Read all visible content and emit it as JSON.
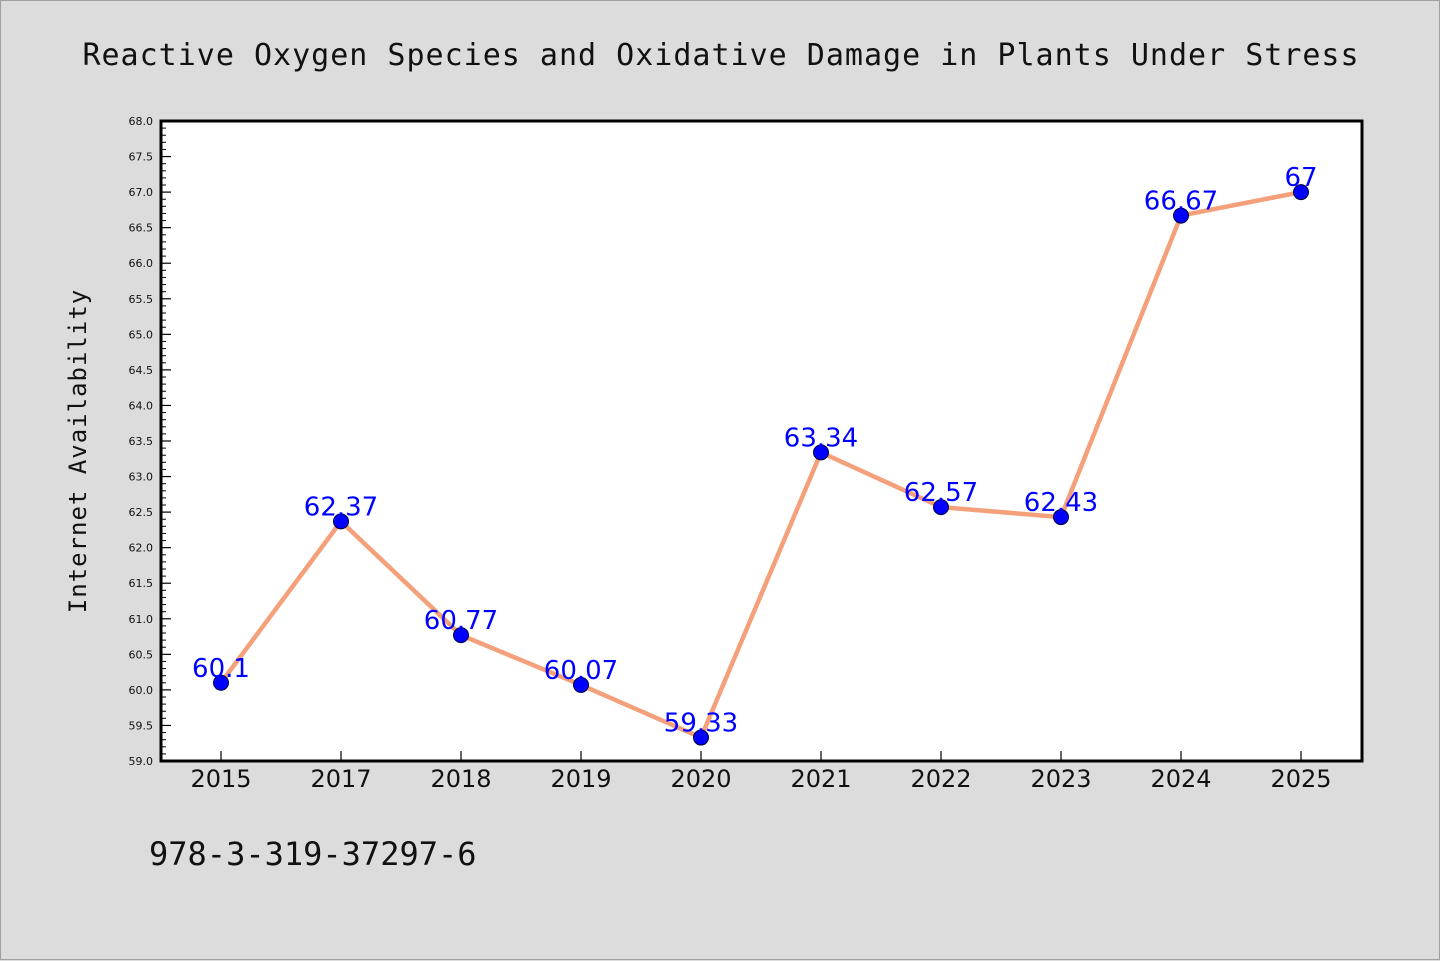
{
  "chart_data": {
    "type": "line",
    "title": "Reactive Oxygen Species and Oxidative Damage in Plants Under Stress",
    "xlabel": "",
    "ylabel": "Internet Availability",
    "categories": [
      "2015",
      "2017",
      "2018",
      "2019",
      "2020",
      "2021",
      "2022",
      "2023",
      "2024",
      "2025"
    ],
    "series": [
      {
        "values": [
          60.1,
          62.37,
          60.77,
          60.07,
          59.33,
          63.34,
          62.57,
          62.43,
          66.67,
          67
        ],
        "data_labels": [
          "60.1",
          "62.37",
          "60.77",
          "60.07",
          "59.33",
          "63.34",
          "62.57",
          "62.43",
          "66.67",
          "67"
        ],
        "line_color": "#f4a07a",
        "marker_color": "#0000ff"
      }
    ],
    "ylim": [
      59.0,
      68.0
    ],
    "yticks": [
      "59.0",
      "59.5",
      "60.0",
      "60.5",
      "61.0",
      "61.5",
      "62.0",
      "62.5",
      "63.0",
      "63.5",
      "64.0",
      "64.5",
      "65.0",
      "65.5",
      "66.0",
      "66.5",
      "67.0",
      "67.5",
      "68.0"
    ],
    "grid": false,
    "legend": "none",
    "background_color": "#dcdcdc",
    "plot_background_color": "#ffffff",
    "label_color": "#0000ff"
  },
  "footer": {
    "text": "978-3-319-37297-6"
  }
}
